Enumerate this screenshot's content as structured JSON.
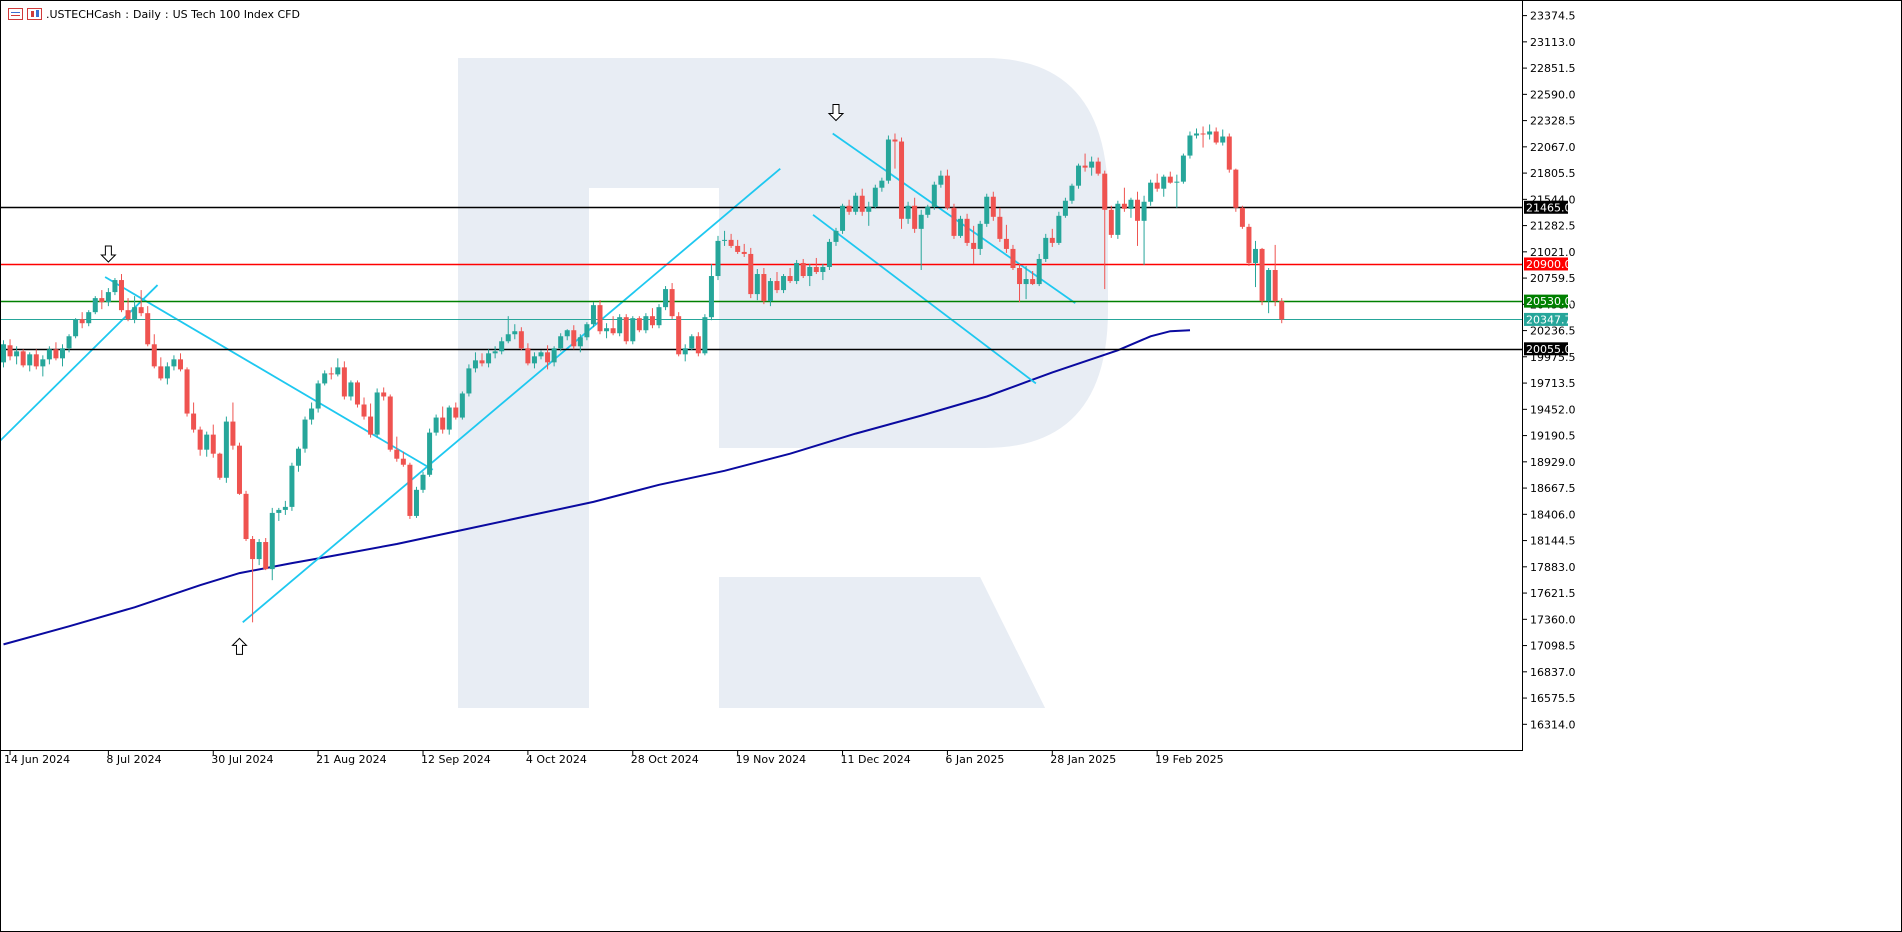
{
  "header": {
    "symbol": ".USTECHCash",
    "timeframe": "Daily",
    "description": "US Tech 100 Index CFD",
    "title_sep": ":"
  },
  "colors": {
    "bull": "#26a69a",
    "bear": "#ef5350",
    "trendline": "#1ec8f0",
    "ma": "#0a0aa0",
    "support": "#000000",
    "resistance_red": "#ff0000",
    "level_green": "#008000",
    "price_line": "#26a69a",
    "logo": "#e8edf4"
  },
  "chart_data": {
    "type": "candlestick",
    "ylim": [
      16068,
      23520
    ],
    "y_ticks": [
      "23374.5",
      "23113.0",
      "22851.5",
      "22590.0",
      "22328.5",
      "22067.0",
      "21805.5",
      "21544.0",
      "21282.5",
      "21021.0",
      "20759.5",
      "20498.0",
      "20236.5",
      "19975.5",
      "19713.5",
      "19452.0",
      "19190.5",
      "18929.0",
      "18667.5",
      "18406.0",
      "18144.5",
      "17883.0",
      "17621.5",
      "17360.0",
      "17098.5",
      "16837.0",
      "16575.5",
      "16314.0"
    ],
    "x_labels": [
      "14 Jun 2024",
      "8 Jul 2024",
      "30 Jul 2024",
      "21 Aug 2024",
      "12 Sep 2024",
      "4 Oct 2024",
      "28 Oct 2024",
      "19 Nov 2024",
      "11 Dec 2024",
      "6 Jan 2025",
      "28 Jan 2025",
      "19 Feb 2025"
    ],
    "x_label_bars": [
      1,
      16,
      32,
      48,
      64,
      80,
      96,
      112,
      128,
      144,
      160,
      176
    ],
    "grid": false,
    "levels": [
      {
        "value": 21465.0,
        "label": "21465.0",
        "color": "#000000",
        "kind": "support-resistance"
      },
      {
        "value": 20900.0,
        "label": "20900.0",
        "color": "#ff0000",
        "kind": "resistance"
      },
      {
        "value": 20530.0,
        "label": "20530.0",
        "color": "#008000",
        "kind": "level"
      },
      {
        "value": 20347.7,
        "label": "20347.7",
        "color": "#26a69a",
        "kind": "current-price"
      },
      {
        "value": 20055.0,
        "label": "20055.0",
        "color": "#000000",
        "kind": "support"
      }
    ],
    "ohlc": [
      [
        19920,
        20140,
        19870,
        20100
      ],
      [
        20090,
        20150,
        19940,
        19980
      ],
      [
        19980,
        20080,
        19900,
        20030
      ],
      [
        20030,
        20050,
        19870,
        19890
      ],
      [
        19890,
        20020,
        19830,
        20000
      ],
      [
        20000,
        20050,
        19850,
        19880
      ],
      [
        19880,
        19990,
        19780,
        19950
      ],
      [
        19950,
        20080,
        19900,
        20050
      ],
      [
        20050,
        20120,
        19940,
        19960
      ],
      [
        19960,
        20100,
        19880,
        20060
      ],
      [
        20060,
        20200,
        20020,
        20180
      ],
      [
        20180,
        20360,
        20160,
        20350
      ],
      [
        20350,
        20420,
        20260,
        20310
      ],
      [
        20310,
        20440,
        20280,
        20420
      ],
      [
        20420,
        20580,
        20400,
        20560
      ],
      [
        20560,
        20640,
        20450,
        20520
      ],
      [
        20520,
        20660,
        20480,
        20620
      ],
      [
        20620,
        20760,
        20590,
        20740
      ],
      [
        20740,
        20800,
        20420,
        20440
      ],
      [
        20440,
        20560,
        20330,
        20350
      ],
      [
        20350,
        20580,
        20310,
        20470
      ],
      [
        20470,
        20640,
        20380,
        20410
      ],
      [
        20410,
        20480,
        20080,
        20100
      ],
      [
        20100,
        20200,
        19860,
        19880
      ],
      [
        19880,
        19970,
        19740,
        19760
      ],
      [
        19760,
        19920,
        19700,
        19880
      ],
      [
        19880,
        19990,
        19840,
        19950
      ],
      [
        19950,
        20010,
        19830,
        19850
      ],
      [
        19850,
        19870,
        19380,
        19410
      ],
      [
        19410,
        19520,
        19220,
        19250
      ],
      [
        19250,
        19280,
        18990,
        19050
      ],
      [
        19050,
        19230,
        18980,
        19200
      ],
      [
        19200,
        19300,
        18970,
        19010
      ],
      [
        19010,
        19020,
        18750,
        18770
      ],
      [
        18770,
        19380,
        18720,
        19330
      ],
      [
        19330,
        19520,
        19050,
        19090
      ],
      [
        19090,
        19120,
        18600,
        18610
      ],
      [
        18610,
        18640,
        18140,
        18160
      ],
      [
        18160,
        18190,
        17330,
        17960
      ],
      [
        17960,
        18160,
        17900,
        18130
      ],
      [
        18130,
        18170,
        17850,
        17860
      ],
      [
        17860,
        18470,
        17750,
        18420
      ],
      [
        18420,
        18470,
        18340,
        18450
      ],
      [
        18450,
        18540,
        18400,
        18480
      ],
      [
        18480,
        18920,
        18440,
        18890
      ],
      [
        18890,
        19080,
        18830,
        19060
      ],
      [
        19060,
        19380,
        19020,
        19350
      ],
      [
        19350,
        19520,
        19300,
        19460
      ],
      [
        19460,
        19740,
        19420,
        19710
      ],
      [
        19710,
        19840,
        19690,
        19810
      ],
      [
        19810,
        19870,
        19750,
        19800
      ],
      [
        19800,
        19960,
        19780,
        19870
      ],
      [
        19870,
        19930,
        19550,
        19580
      ],
      [
        19580,
        19740,
        19540,
        19720
      ],
      [
        19720,
        19740,
        19470,
        19500
      ],
      [
        19500,
        19570,
        19350,
        19380
      ],
      [
        19380,
        19510,
        19170,
        19200
      ],
      [
        19200,
        19660,
        19170,
        19620
      ],
      [
        19620,
        19670,
        19540,
        19580
      ],
      [
        19580,
        19600,
        19030,
        19050
      ],
      [
        19050,
        19180,
        18930,
        18960
      ],
      [
        18960,
        19030,
        18880,
        18900
      ],
      [
        18900,
        18920,
        18360,
        18390
      ],
      [
        18390,
        18680,
        18370,
        18650
      ],
      [
        18650,
        18830,
        18620,
        18800
      ],
      [
        18800,
        19260,
        18780,
        19220
      ],
      [
        19220,
        19400,
        19190,
        19370
      ],
      [
        19370,
        19480,
        19210,
        19250
      ],
      [
        19250,
        19490,
        19200,
        19470
      ],
      [
        19470,
        19520,
        19350,
        19370
      ],
      [
        19370,
        19630,
        19350,
        19610
      ],
      [
        19610,
        19900,
        19580,
        19860
      ],
      [
        19860,
        20020,
        19820,
        19940
      ],
      [
        19940,
        20010,
        19880,
        19910
      ],
      [
        19910,
        20050,
        19870,
        20010
      ],
      [
        20010,
        20080,
        19960,
        20030
      ],
      [
        20030,
        20170,
        20000,
        20130
      ],
      [
        20130,
        20380,
        20110,
        20200
      ],
      [
        20200,
        20300,
        20150,
        20230
      ],
      [
        20230,
        20270,
        20040,
        20060
      ],
      [
        20060,
        20110,
        19890,
        19910
      ],
      [
        19910,
        20020,
        19860,
        19980
      ],
      [
        19980,
        20040,
        19950,
        20020
      ],
      [
        20020,
        20090,
        19850,
        19920
      ],
      [
        19920,
        20080,
        19880,
        20060
      ],
      [
        20060,
        20210,
        20030,
        20180
      ],
      [
        20180,
        20250,
        20140,
        20240
      ],
      [
        20240,
        20290,
        20050,
        20080
      ],
      [
        20080,
        20200,
        20020,
        20170
      ],
      [
        20170,
        20320,
        20140,
        20300
      ],
      [
        20300,
        20520,
        20270,
        20490
      ],
      [
        20490,
        20540,
        20200,
        20230
      ],
      [
        20230,
        20310,
        20160,
        20260
      ],
      [
        20260,
        20380,
        20190,
        20210
      ],
      [
        20210,
        20400,
        20180,
        20370
      ],
      [
        20370,
        20400,
        20100,
        20130
      ],
      [
        20130,
        20380,
        20100,
        20360
      ],
      [
        20360,
        20380,
        20220,
        20240
      ],
      [
        20240,
        20410,
        20210,
        20380
      ],
      [
        20380,
        20460,
        20260,
        20290
      ],
      [
        20290,
        20500,
        20260,
        20470
      ],
      [
        20470,
        20680,
        20440,
        20650
      ],
      [
        20650,
        20710,
        20350,
        20380
      ],
      [
        20380,
        20420,
        19980,
        20000
      ],
      [
        20000,
        20100,
        19930,
        20060
      ],
      [
        20060,
        20200,
        20040,
        20180
      ],
      [
        20180,
        20220,
        19980,
        20010
      ],
      [
        20010,
        20400,
        19990,
        20370
      ],
      [
        20370,
        20900,
        20340,
        20780
      ],
      [
        20780,
        21180,
        20740,
        21130
      ],
      [
        21130,
        21230,
        21080,
        21140
      ],
      [
        21140,
        21200,
        21060,
        21080
      ],
      [
        21080,
        21140,
        21000,
        21020
      ],
      [
        21020,
        21100,
        20970,
        21000
      ],
      [
        21000,
        21060,
        20560,
        20600
      ],
      [
        20600,
        20850,
        20540,
        20800
      ],
      [
        20800,
        20860,
        20500,
        20530
      ],
      [
        20530,
        20760,
        20480,
        20730
      ],
      [
        20730,
        20820,
        20610,
        20640
      ],
      [
        20640,
        20800,
        20610,
        20780
      ],
      [
        20780,
        20860,
        20710,
        20730
      ],
      [
        20730,
        20940,
        20700,
        20910
      ],
      [
        20910,
        20950,
        20760,
        20780
      ],
      [
        20780,
        20900,
        20680,
        20870
      ],
      [
        20870,
        20960,
        20800,
        20820
      ],
      [
        20820,
        20900,
        20740,
        20870
      ],
      [
        20870,
        21150,
        20840,
        21120
      ],
      [
        21120,
        21260,
        21080,
        21230
      ],
      [
        21230,
        21500,
        21200,
        21480
      ],
      [
        21480,
        21540,
        21390,
        21420
      ],
      [
        21420,
        21610,
        21390,
        21580
      ],
      [
        21580,
        21650,
        21380,
        21420
      ],
      [
        21420,
        21520,
        21280,
        21470
      ],
      [
        21470,
        21690,
        21450,
        21660
      ],
      [
        21660,
        21760,
        21620,
        21730
      ],
      [
        21730,
        22180,
        21700,
        22140
      ],
      [
        22140,
        22200,
        21850,
        22120
      ],
      [
        22120,
        22160,
        21250,
        21350
      ],
      [
        21350,
        21520,
        21300,
        21480
      ],
      [
        21480,
        21560,
        21210,
        21250
      ],
      [
        21250,
        21440,
        20840,
        21390
      ],
      [
        21390,
        21490,
        21360,
        21470
      ],
      [
        21470,
        21720,
        21440,
        21690
      ],
      [
        21690,
        21830,
        21660,
        21780
      ],
      [
        21780,
        21840,
        21440,
        21460
      ],
      [
        21460,
        21500,
        21150,
        21180
      ],
      [
        21180,
        21380,
        21160,
        21350
      ],
      [
        21350,
        21400,
        21080,
        21110
      ],
      [
        21110,
        21280,
        20900,
        21050
      ],
      [
        21050,
        21330,
        20990,
        21300
      ],
      [
        21300,
        21600,
        21270,
        21570
      ],
      [
        21570,
        21620,
        21330,
        21370
      ],
      [
        21370,
        21460,
        21120,
        21150
      ],
      [
        21150,
        21290,
        21010,
        21050
      ],
      [
        21050,
        21090,
        20840,
        20860
      ],
      [
        20860,
        20900,
        20520,
        20700
      ],
      [
        20700,
        20880,
        20550,
        20750
      ],
      [
        20750,
        20830,
        20690,
        20700
      ],
      [
        20700,
        21000,
        20680,
        20950
      ],
      [
        20950,
        21200,
        20920,
        21160
      ],
      [
        21160,
        21250,
        21070,
        21110
      ],
      [
        21110,
        21420,
        21090,
        21380
      ],
      [
        21380,
        21560,
        21360,
        21530
      ],
      [
        21530,
        21700,
        21500,
        21680
      ],
      [
        21680,
        21900,
        21650,
        21880
      ],
      [
        21880,
        22000,
        21820,
        21860
      ],
      [
        21860,
        21970,
        21780,
        21920
      ],
      [
        21920,
        21960,
        21780,
        21800
      ],
      [
        21800,
        21830,
        20650,
        21440
      ],
      [
        21440,
        21480,
        21160,
        21190
      ],
      [
        21190,
        21530,
        21150,
        21500
      ],
      [
        21500,
        21660,
        21420,
        21450
      ],
      [
        21450,
        21560,
        21360,
        21540
      ],
      [
        21540,
        21620,
        21080,
        21330
      ],
      [
        21330,
        21580,
        20890,
        21520
      ],
      [
        21520,
        21740,
        21480,
        21710
      ],
      [
        21710,
        21800,
        21620,
        21650
      ],
      [
        21650,
        21790,
        21570,
        21770
      ],
      [
        21770,
        21820,
        21700,
        21710
      ],
      [
        21710,
        21790,
        21460,
        21720
      ],
      [
        21720,
        22000,
        21700,
        21980
      ],
      [
        21980,
        22220,
        21950,
        22180
      ],
      [
        22180,
        22250,
        22150,
        22200
      ],
      [
        22200,
        22270,
        22060,
        22190
      ],
      [
        22190,
        22290,
        22140,
        22220
      ],
      [
        22220,
        22260,
        22090,
        22110
      ],
      [
        22110,
        22240,
        22080,
        22170
      ],
      [
        22170,
        22200,
        21810,
        21840
      ],
      [
        21840,
        21850,
        21420,
        21460
      ],
      [
        21460,
        21480,
        21250,
        21270
      ],
      [
        21270,
        21300,
        20880,
        20910
      ],
      [
        20910,
        21130,
        20670,
        21050
      ],
      [
        21050,
        21060,
        20490,
        20530
      ],
      [
        20530,
        20860,
        20410,
        20840
      ],
      [
        20840,
        21090,
        20480,
        20530
      ],
      [
        20530,
        20560,
        20310,
        20347.7
      ]
    ],
    "ma_line": [
      [
        0,
        17110
      ],
      [
        10,
        17290
      ],
      [
        20,
        17480
      ],
      [
        30,
        17700
      ],
      [
        36,
        17820
      ],
      [
        44,
        17920
      ],
      [
        50,
        17990
      ],
      [
        60,
        18110
      ],
      [
        70,
        18250
      ],
      [
        80,
        18390
      ],
      [
        90,
        18530
      ],
      [
        100,
        18700
      ],
      [
        110,
        18840
      ],
      [
        120,
        19010
      ],
      [
        130,
        19210
      ],
      [
        140,
        19390
      ],
      [
        150,
        19580
      ],
      [
        160,
        19820
      ],
      [
        170,
        20040
      ],
      [
        175,
        20180
      ],
      [
        178,
        20230
      ],
      [
        181,
        20240
      ]
    ],
    "trendlines": [
      {
        "from": [
          -0.5,
          19140
        ],
        "to": [
          23.5,
          20690
        ]
      },
      {
        "from": [
          15.5,
          20770
        ],
        "to": [
          65.5,
          18850
        ]
      },
      {
        "from": [
          36.5,
          17330
        ],
        "to": [
          118.5,
          21850
        ]
      },
      {
        "from": [
          126.5,
          22200
        ],
        "to": [
          163.5,
          20510
        ]
      },
      {
        "from": [
          123.5,
          21390
        ],
        "to": [
          157.5,
          19710
        ]
      }
    ],
    "markers": [
      {
        "bar": 16,
        "value": 20820,
        "direction": "down"
      },
      {
        "bar": 36,
        "value": 17250,
        "direction": "up"
      },
      {
        "bar": 127,
        "value": 22230,
        "direction": "down"
      }
    ]
  }
}
